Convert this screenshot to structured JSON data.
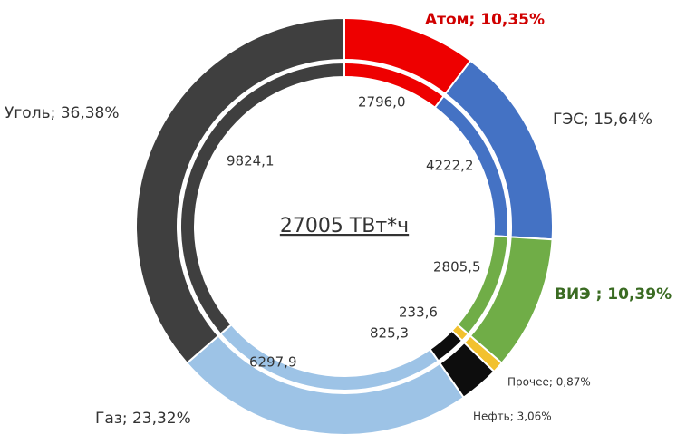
{
  "chart_data": {
    "type": "donut",
    "center_label": "27005 ТВт*ч",
    "colors": [
      "#ee0000",
      "#4472c4",
      "#70ad47",
      "#f2c12e",
      "#0d0d0d",
      "#9dc3e6",
      "#3f3f3f"
    ],
    "rings": [
      {
        "values": [
          10.35,
          15.64,
          10.39,
          0.87,
          3.06,
          23.32,
          36.38
        ],
        "value_labels": [
          "Атом; 10,35%",
          "ГЭС; 15,64%",
          "ВИЭ ; 10,39%",
          "Прочее; 0,87%",
          "Нефть; 3,06%",
          "Газ; 23,32%",
          "Уголь; 36,38%"
        ]
      },
      {
        "values": [
          2796.0,
          4222.2,
          2805.5,
          233.6,
          825.3,
          6297.9,
          9824.1
        ],
        "value_labels": [
          "2796,0",
          "4222,2",
          "2805,5",
          "233,6",
          "825,3",
          "6297,9",
          "9824,1"
        ]
      }
    ]
  }
}
